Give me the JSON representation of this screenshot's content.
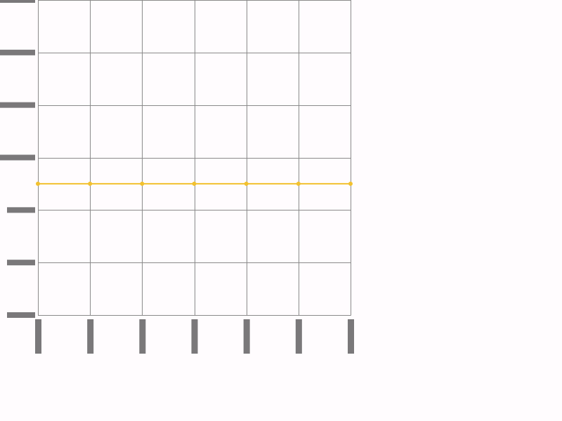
{
  "chart_data": {
    "type": "line",
    "title": "",
    "xlabel": "",
    "ylabel": "",
    "x": [
      0,
      1,
      2,
      3,
      4,
      5,
      6
    ],
    "xlim": [
      0,
      6
    ],
    "ylim": [
      0,
      6
    ],
    "yticks": [
      0,
      1,
      2,
      3,
      4,
      5,
      6
    ],
    "grid": true,
    "legend": "none",
    "series": [
      {
        "values": [
          2.5,
          2.5,
          2.5,
          2.5,
          2.5,
          2.5,
          2.5
        ],
        "color": "#f2c12e"
      }
    ]
  },
  "colors": {
    "background": "#fffcfe",
    "grid": "#8a8a8a",
    "tick_bars": "#7a787a",
    "series": "#f2c12e"
  }
}
